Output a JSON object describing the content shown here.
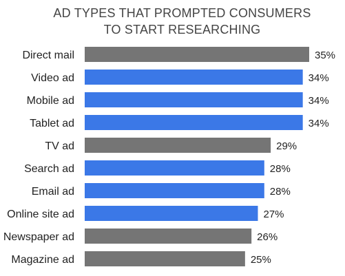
{
  "chart_data": {
    "type": "bar",
    "orientation": "horizontal",
    "title": "AD TYPES THAT PROMPTED CONSUMERS TO START RESEARCHING",
    "title_lines": [
      "AD TYPES THAT PROMPTED CONSUMERS",
      "TO START RESEARCHING"
    ],
    "categories": [
      "Direct mail",
      "Video ad",
      "Mobile ad",
      "Tablet ad",
      "TV ad",
      "Search ad",
      "Email ad",
      "Online site ad",
      "Newspaper ad",
      "Magazine ad"
    ],
    "values": [
      35,
      34,
      34,
      34,
      29,
      28,
      28,
      27,
      26,
      25
    ],
    "value_labels": [
      "35%",
      "34%",
      "34%",
      "34%",
      "29%",
      "28%",
      "28%",
      "27%",
      "26%",
      "25%"
    ],
    "bar_groups": [
      "traditional",
      "digital",
      "digital",
      "digital",
      "traditional",
      "digital",
      "digital",
      "digital",
      "traditional",
      "traditional"
    ],
    "colors": {
      "traditional": "#757575",
      "digital": "#3b78e7"
    },
    "xlim": [
      0,
      35
    ],
    "xlabel": "",
    "ylabel": "",
    "grid": false,
    "legend": "none"
  }
}
